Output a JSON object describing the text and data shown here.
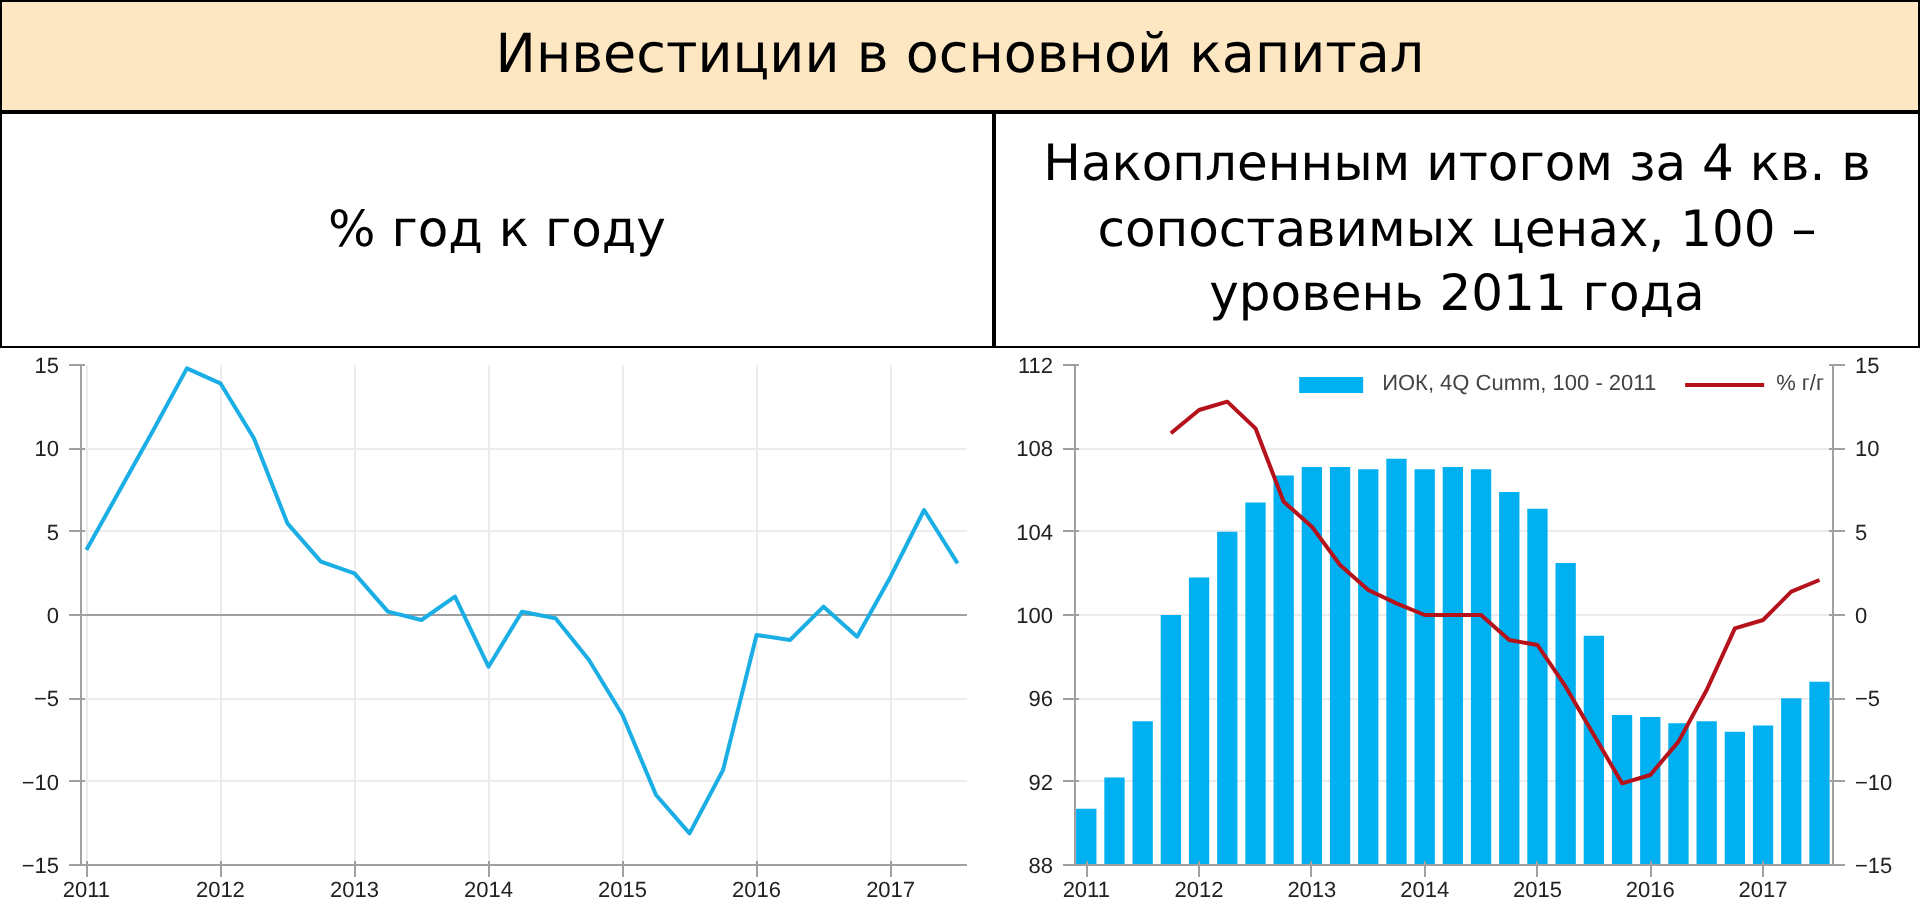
{
  "chart_data": [
    {
      "type": "line",
      "title": "Инвестиции в основной капитал",
      "subtitle": "% год к году",
      "x": [
        2011.0,
        2011.25,
        2011.5,
        2011.75,
        2012.0,
        2012.25,
        2012.5,
        2012.75,
        2013.0,
        2013.25,
        2013.5,
        2013.75,
        2014.0,
        2014.25,
        2014.5,
        2014.75,
        2015.0,
        2015.25,
        2015.5,
        2015.75,
        2016.0,
        2016.25,
        2016.5,
        2016.75,
        2017.0,
        2017.25,
        2017.5
      ],
      "series": [
        {
          "color": "#1aaee5",
          "values": [
            3.9,
            7.5,
            11.1,
            14.8,
            13.9,
            10.6,
            5.5,
            3.2,
            2.5,
            0.2,
            -0.3,
            1.1,
            -3.1,
            0.2,
            -0.2,
            -2.7,
            -6.0,
            -10.8,
            -13.1,
            -9.3,
            -1.2,
            -1.5,
            0.5,
            -1.3,
            2.3,
            6.3,
            3.1
          ]
        }
      ],
      "xlim": [
        2010.96,
        2017.57
      ],
      "xticks": [
        2011,
        2012,
        2013,
        2014,
        2015,
        2016,
        2017
      ],
      "ylim": [
        -15,
        15
      ],
      "yticks": [
        -15,
        -10,
        -5,
        0,
        5,
        10,
        15
      ],
      "ref_lines": [
        {
          "axis": "y",
          "value": 0,
          "color": "#a0a0a0"
        }
      ],
      "grid": true,
      "legend": false
    },
    {
      "type": "bar",
      "subtitle": "Накопленным итогом за 4 кв. в сопоставимых ценах, 100 – уровень 2011 года",
      "x": [
        2011.0,
        2011.25,
        2011.5,
        2011.75,
        2012.0,
        2012.25,
        2012.5,
        2012.75,
        2013.0,
        2013.25,
        2013.5,
        2013.75,
        2014.0,
        2014.25,
        2014.5,
        2014.75,
        2015.0,
        2015.25,
        2015.5,
        2015.75,
        2016.0,
        2016.25,
        2016.5,
        2016.75,
        2017.0,
        2017.25,
        2017.5
      ],
      "series": [
        {
          "name": "ИОК, 4Q Cumm, 100 - 2011",
          "type": "bar",
          "color": "#00b0f0",
          "values": [
            90.7,
            92.2,
            94.9,
            100.0,
            101.8,
            104.0,
            105.4,
            106.7,
            107.1,
            107.1,
            107.0,
            107.5,
            107.0,
            107.1,
            107.0,
            105.9,
            105.1,
            102.5,
            99.0,
            95.2,
            95.1,
            94.8,
            94.9,
            94.4,
            94.7,
            96.0,
            96.8
          ]
        },
        {
          "name": "% г/г",
          "type": "line",
          "axis": "y2",
          "color": "#b5121b",
          "values": [
            null,
            null,
            null,
            10.9,
            12.3,
            12.8,
            11.2,
            6.8,
            5.3,
            3.0,
            1.5,
            0.7,
            0.0,
            0.0,
            0.0,
            -1.5,
            -1.8,
            -4.3,
            -7.2,
            -10.1,
            -9.6,
            -7.6,
            -4.5,
            -0.8,
            -0.3,
            1.4,
            2.1
          ]
        }
      ],
      "xlim": [
        2010.9,
        2017.62
      ],
      "xticks": [
        2011,
        2012,
        2013,
        2014,
        2015,
        2016,
        2017
      ],
      "ylim": [
        88,
        112
      ],
      "yticks": [
        88,
        92,
        96,
        100,
        104,
        108,
        112
      ],
      "y2lim": [
        -15,
        15
      ],
      "y2ticks": [
        -15,
        -10,
        -5,
        0,
        5,
        10,
        15
      ],
      "grid": "y",
      "legend": "top"
    }
  ]
}
